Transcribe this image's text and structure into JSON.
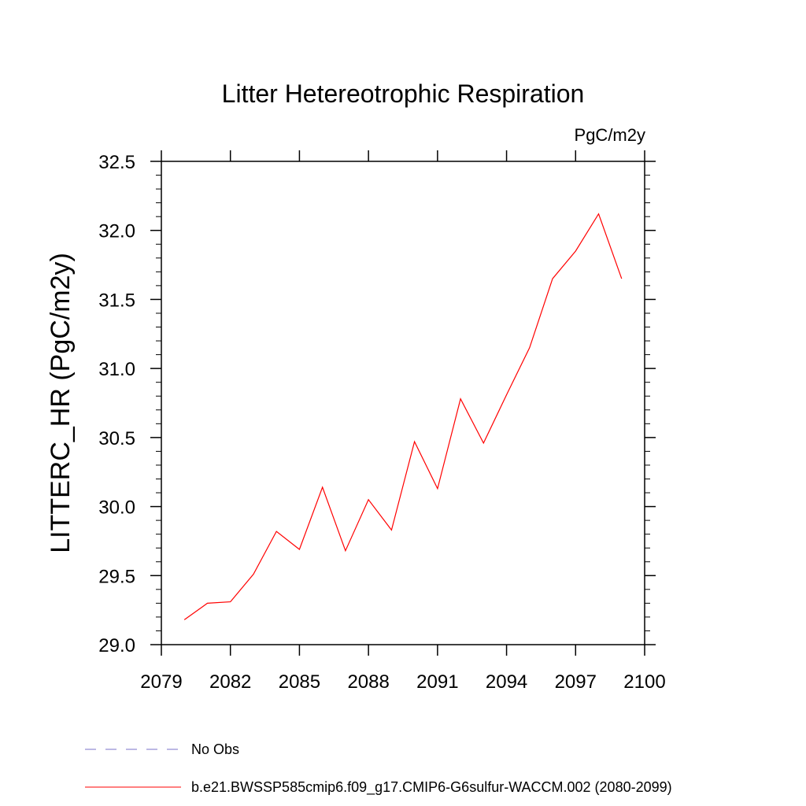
{
  "chart_data": {
    "type": "line",
    "title": "Litter Hetereotrophic Respiration",
    "units": "PgC/m2y",
    "xlabel": "",
    "ylabel": "LITTERC_HR  (PgC/m2y)",
    "xlim": [
      2079,
      2100
    ],
    "ylim": [
      29.0,
      32.5
    ],
    "x_ticks": [
      2079,
      2082,
      2085,
      2088,
      2091,
      2094,
      2097,
      2100
    ],
    "y_ticks": [
      29.0,
      29.5,
      30.0,
      30.5,
      31.0,
      31.5,
      32.0,
      32.5
    ],
    "x_tick_labels": [
      "2079",
      "2082",
      "2085",
      "2088",
      "2091",
      "2094",
      "2097",
      "2100"
    ],
    "y_tick_labels": [
      "29.0",
      "29.5",
      "30.0",
      "30.5",
      "31.0",
      "31.5",
      "32.0",
      "32.5"
    ],
    "grid": false,
    "series": [
      {
        "name": "b.e21.BWSSP585cmip6.f09_g17.CMIP6-G6sulfur-WACCM.002 (2080-2099)",
        "color": "#ff0000",
        "style": "solid",
        "x": [
          2080,
          2081,
          2082,
          2083,
          2084,
          2085,
          2086,
          2087,
          2088,
          2089,
          2090,
          2091,
          2092,
          2093,
          2094,
          2095,
          2096,
          2097,
          2098,
          2099
        ],
        "y": [
          29.18,
          29.3,
          29.31,
          29.51,
          29.82,
          29.69,
          30.14,
          29.68,
          30.05,
          29.83,
          30.47,
          30.13,
          30.78,
          30.46,
          30.81,
          31.15,
          31.65,
          31.85,
          32.12,
          31.65
        ]
      }
    ],
    "legend": {
      "placement": "bottom-left",
      "entries": [
        {
          "label": "No Obs",
          "color": "#7a70c8",
          "style": "dashed"
        },
        {
          "label": "b.e21.BWSSP585cmip6.f09_g17.CMIP6-G6sulfur-WACCM.002 (2080-2099)",
          "color": "#ff0000",
          "style": "solid"
        }
      ]
    }
  }
}
